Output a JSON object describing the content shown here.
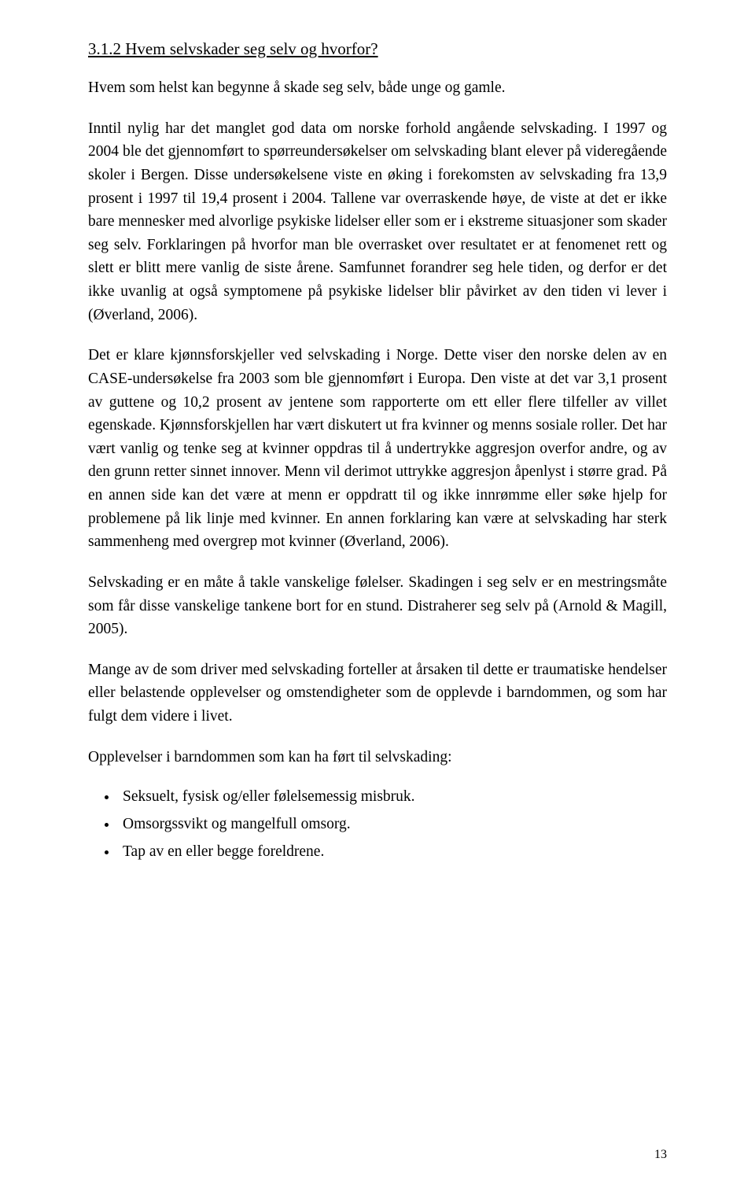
{
  "heading": "3.1.2 Hvem selvskader seg selv og hvorfor?",
  "paragraphs": [
    "Hvem som helst kan begynne å skade seg selv, både unge og gamle.",
    "Inntil nylig har det manglet god data om norske forhold angående selvskading. I 1997 og 2004 ble det gjennomført to spørreundersøkelser om selvskading blant elever på videregående skoler i Bergen. Disse undersøkelsene viste en øking i forekomsten av selvskading fra 13,9 prosent i 1997 til 19,4 prosent i 2004.  Tallene var overraskende høye, de viste at det er ikke bare mennesker med alvorlige psykiske lidelser eller som er i ekstreme situasjoner som skader seg selv. Forklaringen på hvorfor man ble overrasket over resultatet er at fenomenet rett og slett er blitt mere vanlig de siste årene. Samfunnet forandrer seg hele tiden, og derfor er det ikke uvanlig at også symptomene på psykiske lidelser blir påvirket av den tiden vi lever i (Øverland, 2006).",
    "Det er klare kjønnsforskjeller ved selvskading i Norge. Dette viser den norske delen av en CASE-undersøkelse fra 2003 som ble gjennomført i Europa. Den viste at det var 3,1 prosent av guttene og 10,2 prosent av jentene som rapporterte om ett eller flere tilfeller av villet egenskade. Kjønnsforskjellen har vært diskutert ut fra kvinner og menns sosiale roller. Det har vært vanlig og tenke seg at kvinner oppdras til å undertrykke aggresjon overfor andre, og av den grunn retter sinnet innover. Menn vil derimot uttrykke aggresjon åpenlyst i større grad. På en annen side kan det være at menn er oppdratt til og ikke innrømme eller søke hjelp for problemene på lik linje med kvinner. En annen forklaring kan være at selvskading har sterk sammenheng med overgrep mot kvinner (Øverland, 2006).",
    "Selvskading er en måte å takle vanskelige følelser. Skadingen i seg selv er en mestringsmåte som får disse vanskelige tankene bort for en stund. Distraherer seg selv på (Arnold & Magill, 2005).",
    "Mange av de som driver med selvskading forteller at årsaken til dette er traumatiske hendelser eller belastende opplevelser og omstendigheter som de opplevde i barndommen, og som har fulgt dem videre i livet."
  ],
  "list_intro": "Opplevelser i barndommen som kan ha ført til selvskading:",
  "bullets": [
    "Seksuelt, fysisk og/eller følelsemessig misbruk.",
    "Omsorgssvikt og mangelfull omsorg.",
    "Tap av en eller begge foreldrene."
  ],
  "page_number": "13"
}
